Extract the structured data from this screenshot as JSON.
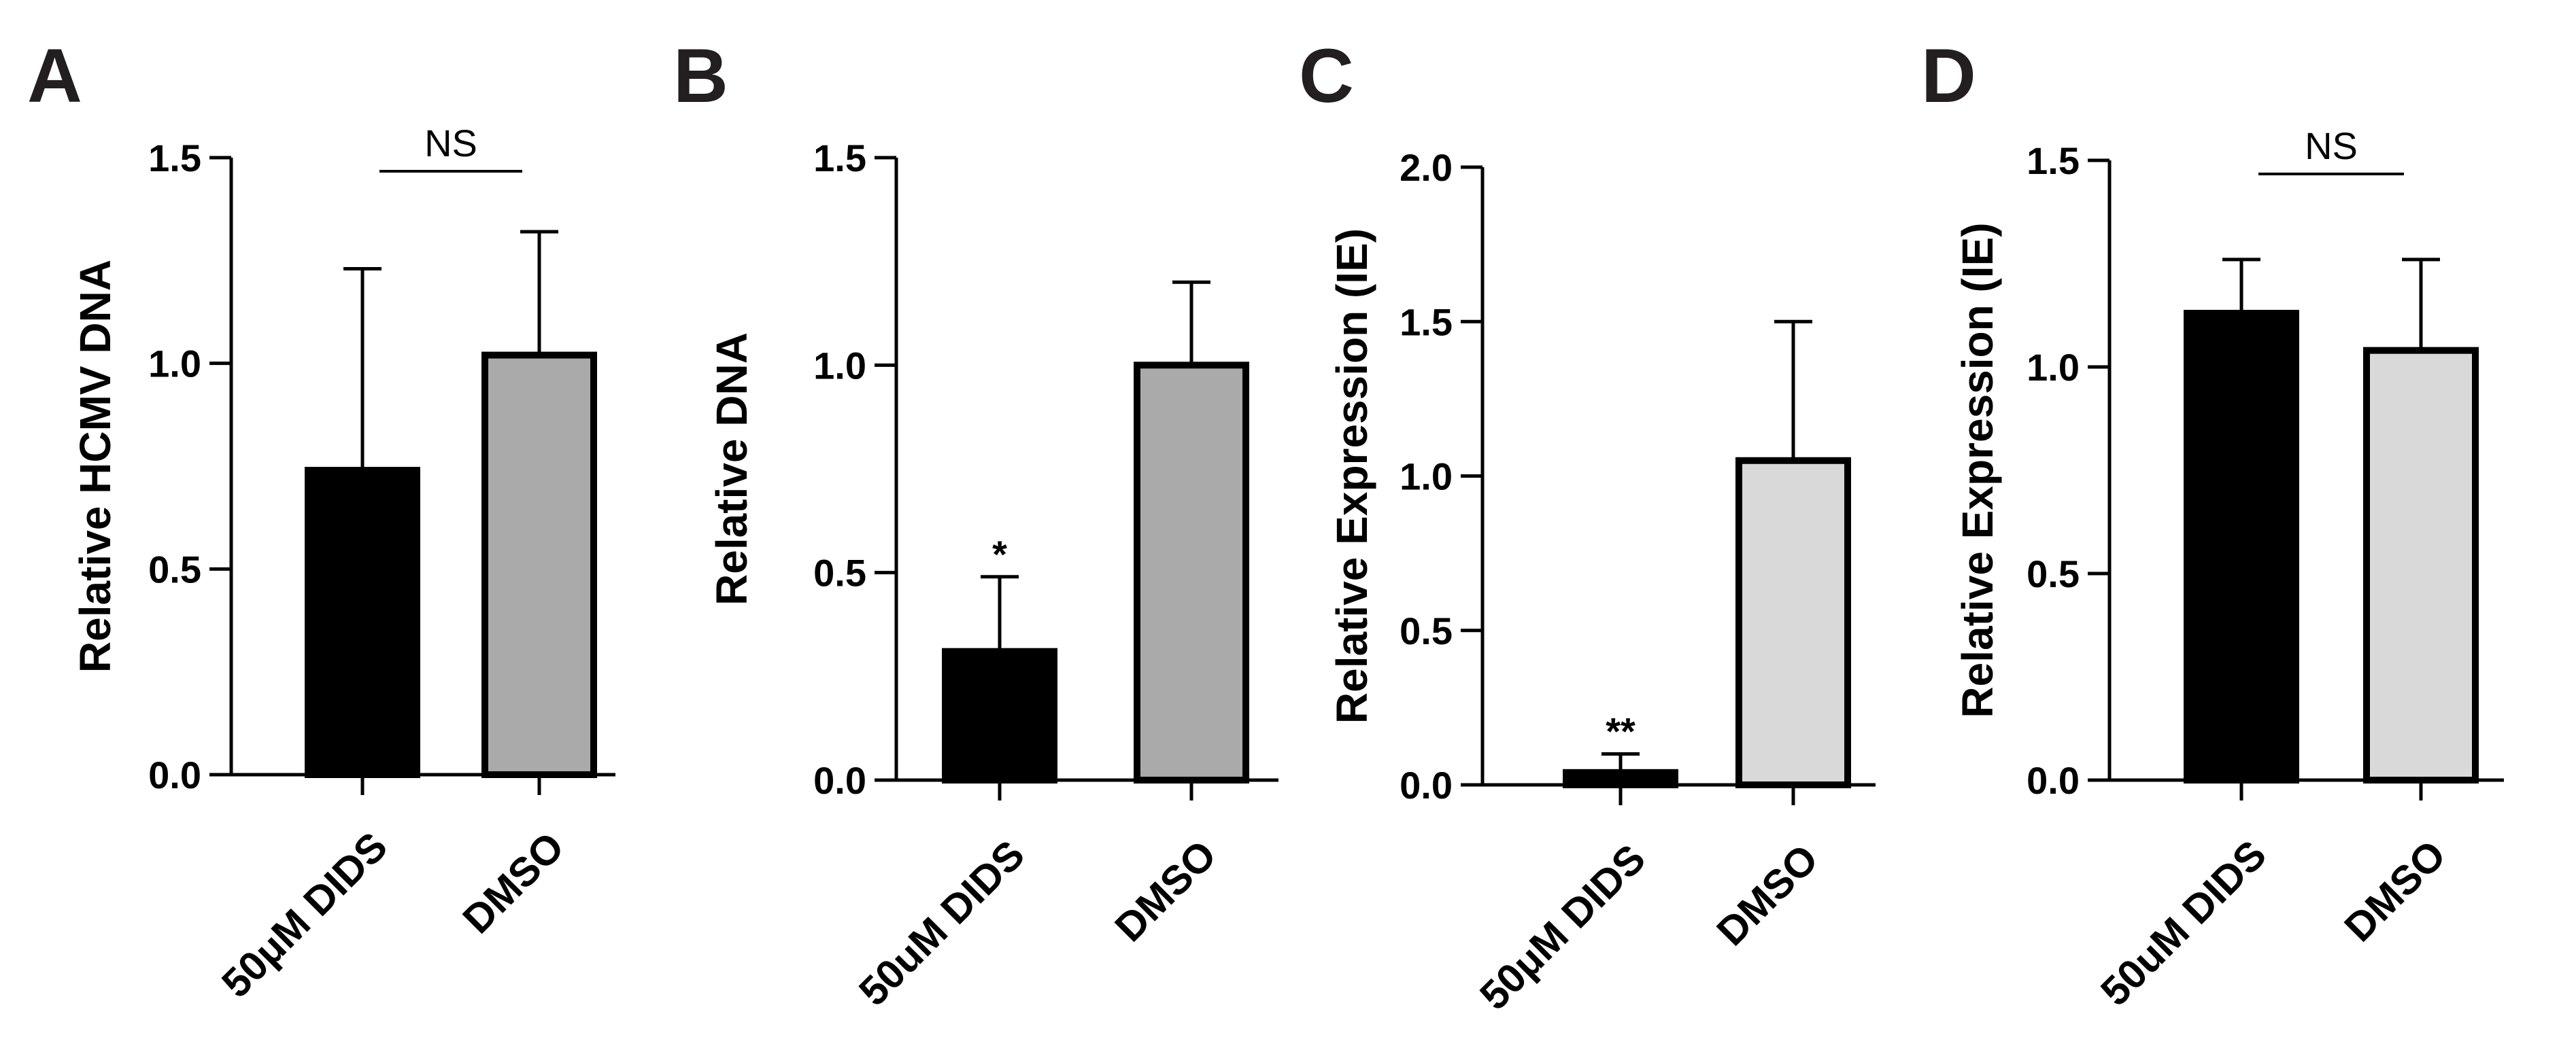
{
  "chart_data": [
    {
      "type": "bar",
      "panel": "A",
      "ylabel": "Relative HCMV DNA",
      "ylim": [
        0,
        1.5
      ],
      "yticks": [
        "0.0",
        "0.5",
        "1.0",
        "1.5"
      ],
      "categories": [
        "50μM DIDS",
        "DMSO"
      ],
      "values": [
        0.74,
        1.02
      ],
      "errors": [
        0.49,
        0.3
      ],
      "colors": [
        "#000000",
        "#aaaaaa"
      ],
      "bar_labels": [
        "",
        ""
      ],
      "bracket_label": "NS"
    },
    {
      "type": "bar",
      "panel": "B",
      "ylabel": "Relative  DNA",
      "ylim": [
        0,
        1.5
      ],
      "yticks": [
        "0.0",
        "0.5",
        "1.0",
        "1.5"
      ],
      "categories": [
        "50uM DIDS",
        "DMSO"
      ],
      "values": [
        0.31,
        1.0
      ],
      "errors": [
        0.18,
        0.2
      ],
      "colors": [
        "#000000",
        "#aaaaaa"
      ],
      "bar_labels": [
        "*",
        ""
      ],
      "bracket_label": ""
    },
    {
      "type": "bar",
      "panel": "C",
      "ylabel": "Relative Expression (IE)",
      "ylim": [
        0,
        2.0
      ],
      "yticks": [
        "0.0",
        "0.5",
        "1.0",
        "1.5",
        "2.0"
      ],
      "categories": [
        "50μM DIDS",
        "DMSO"
      ],
      "values": [
        0.04,
        1.05
      ],
      "errors": [
        0.06,
        0.45
      ],
      "colors": [
        "#000000",
        "#d9d9d9"
      ],
      "bar_labels": [
        "**",
        ""
      ],
      "bracket_label": ""
    },
    {
      "type": "bar",
      "panel": "D",
      "ylabel": "Relative Expression (IE)",
      "ylim": [
        0,
        1.5
      ],
      "yticks": [
        "0.0",
        "0.5",
        "1.0",
        "1.5"
      ],
      "categories": [
        "50uM DIDS",
        "DMSO"
      ],
      "values": [
        1.13,
        1.04
      ],
      "errors": [
        0.13,
        0.22
      ],
      "colors": [
        "#000000",
        "#d9d9d9"
      ],
      "bar_labels": [
        "",
        ""
      ],
      "bracket_label": "NS"
    }
  ]
}
